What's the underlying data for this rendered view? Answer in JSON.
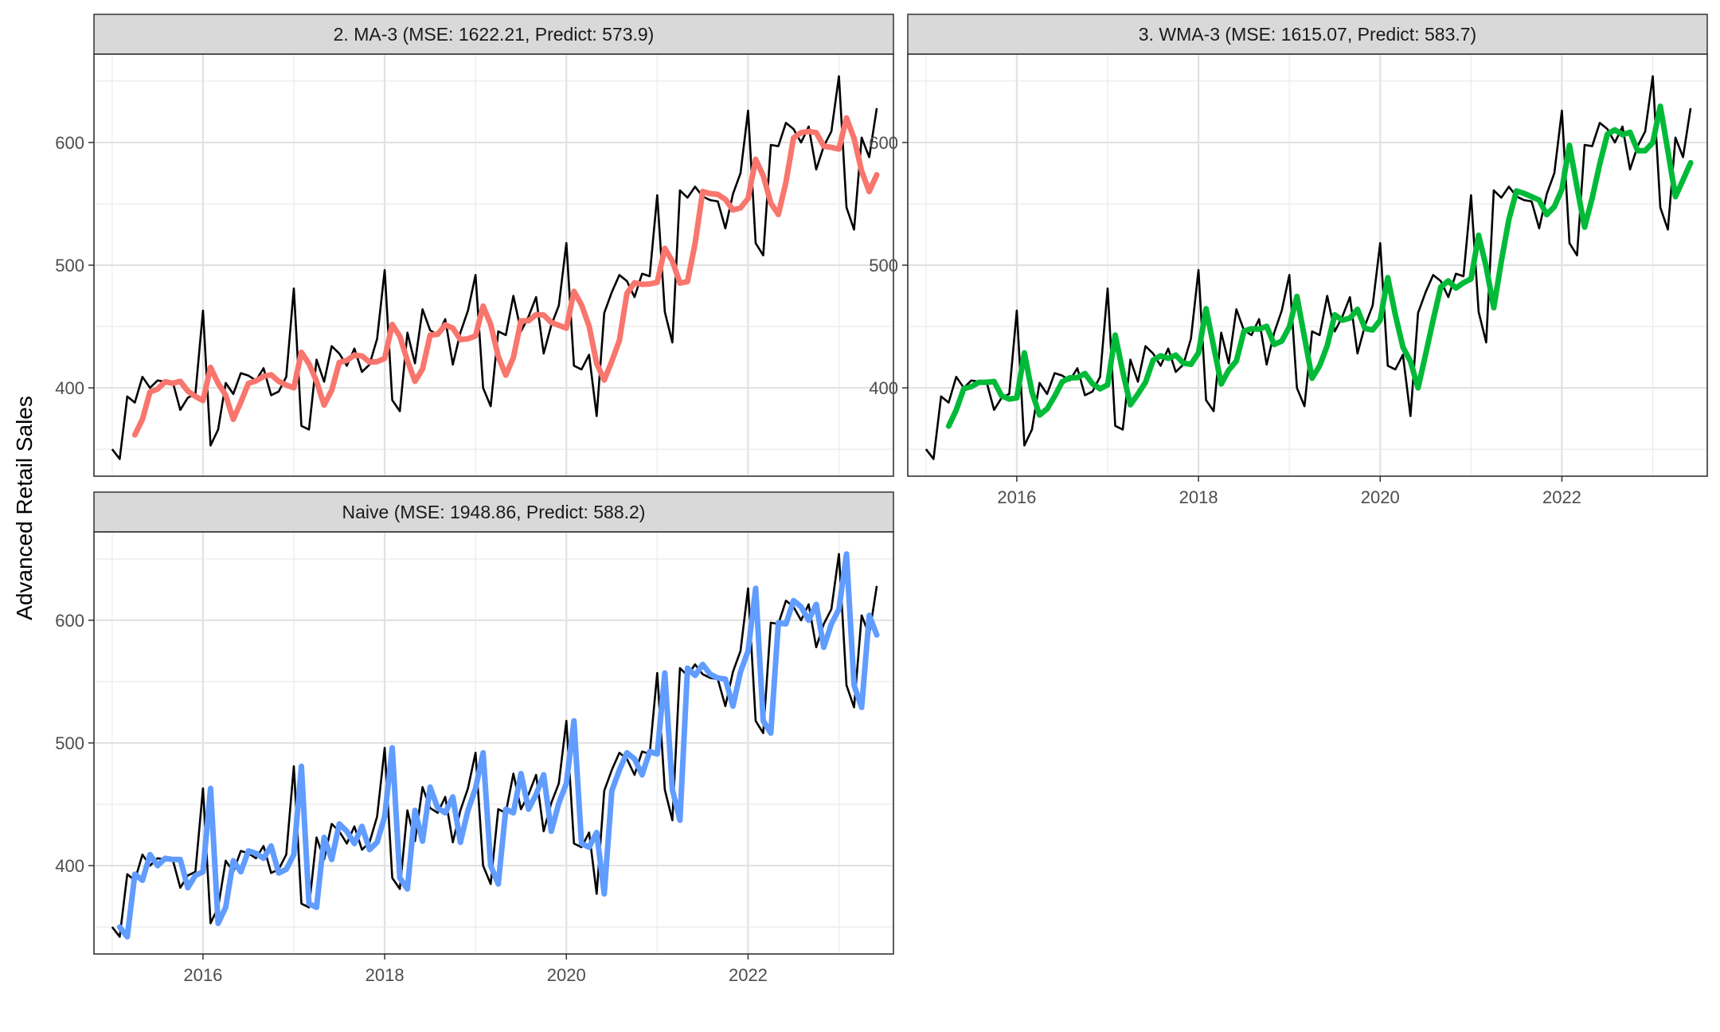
{
  "chart_data": {
    "type": "line",
    "ylabel": "Advanced Retail Sales",
    "xlabel": "",
    "x_ticks": [
      2016,
      2018,
      2020,
      2022
    ],
    "y_ticks": [
      400,
      500,
      600
    ],
    "xlim": [
      2014.8,
      2023.6
    ],
    "ylim": [
      328,
      672
    ],
    "grid": true,
    "colors": {
      "actual": "#000000",
      "ma3": "#F8766D",
      "wma3": "#00BA38",
      "naive": "#619CFF",
      "strip_bg": "#D9D9D9"
    },
    "x_start": {
      "year": 2015,
      "month": 1
    },
    "actual": [
      350,
      342,
      393,
      388,
      409,
      400,
      406,
      405,
      405,
      382,
      392,
      395,
      463,
      353,
      366,
      404,
      395,
      412,
      410,
      406,
      416,
      394,
      397,
      409,
      481,
      369,
      366,
      423,
      405,
      434,
      428,
      418,
      432,
      413,
      419,
      440,
      496,
      390,
      381,
      445,
      420,
      464,
      447,
      443,
      456,
      419,
      445,
      463,
      492,
      400,
      385,
      446,
      443,
      475,
      446,
      458,
      474,
      428,
      451,
      467,
      518,
      418,
      415,
      427,
      377,
      461,
      478,
      492,
      487,
      474,
      493,
      491,
      557,
      462,
      437,
      561,
      555,
      564,
      556,
      553,
      552,
      530,
      558,
      575,
      626,
      518,
      508,
      598,
      597,
      616,
      611,
      600,
      613,
      578,
      597,
      609,
      654,
      547,
      529,
      604,
      588,
      628
    ],
    "panels": [
      {
        "title": "2. MA-3 (MSE: 1622.21, Predict: 573.9)",
        "series": "ma3"
      },
      {
        "title": "3. WMA-3 (MSE: 1615.07, Predict: 583.7)",
        "series": "wma3"
      },
      {
        "title": "Naive (MSE: 1948.86, Predict: 588.2)",
        "series": "naive"
      }
    ]
  }
}
